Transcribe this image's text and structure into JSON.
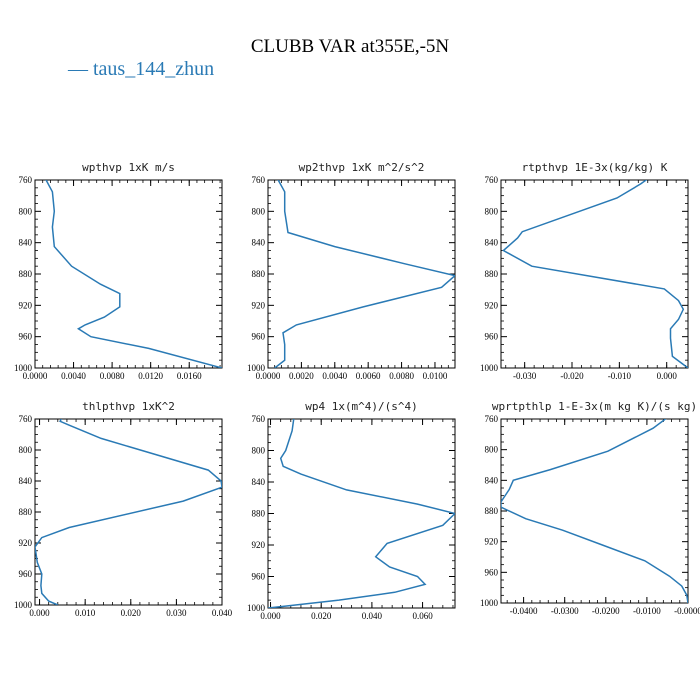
{
  "title": "CLUBB VAR at355E,-5N",
  "legend": {
    "label": "taus_144_zhun",
    "color": "#2a7ab5"
  },
  "chart_data": [
    {
      "type": "line",
      "title": "wpthvp  1xK m/s",
      "xlim": [
        0.0,
        0.0194
      ],
      "ylim": [
        760,
        1000
      ],
      "xticks": [
        "0.0000",
        "0.0040",
        "0.0080",
        "0.0120",
        "0.0160"
      ],
      "xtick_values": [
        0.0,
        0.004,
        0.008,
        0.012,
        0.016
      ],
      "yticks": [
        "760",
        "800",
        "840",
        "880",
        "920",
        "960",
        "1000"
      ],
      "series": [
        {
          "x": [
            0.0008,
            0.0018,
            0.002,
            0.0018,
            0.002,
            0.0038,
            0.0068,
            0.0088,
            0.0088,
            0.0072,
            0.0052,
            0.0045,
            0.0058,
            0.0118,
            0.0194
          ],
          "y": [
            752,
            775,
            800,
            820,
            845,
            870,
            893,
            905,
            922,
            935,
            945,
            950,
            960,
            975,
            1000
          ]
        }
      ]
    },
    {
      "type": "line",
      "title": "wp2thvp  1xK m^2/s^2",
      "xlim": [
        0.0,
        0.0112
      ],
      "ylim": [
        760,
        1000
      ],
      "xticks": [
        "0.0000",
        "0.0020",
        "0.0040",
        "0.0060",
        "0.0080",
        "0.0100"
      ],
      "xtick_values": [
        0.0,
        0.002,
        0.004,
        0.006,
        0.008,
        0.01
      ],
      "yticks": [
        "760",
        "800",
        "840",
        "880",
        "920",
        "960",
        "1000"
      ],
      "series": [
        {
          "x": [
            0.0004,
            0.001,
            0.001,
            0.0012,
            0.004,
            0.0082,
            0.0112,
            0.0104,
            0.0057,
            0.0017,
            0.0009,
            0.001,
            0.001,
            0.0004
          ],
          "y": [
            752,
            775,
            800,
            827,
            845,
            867,
            882,
            897,
            922,
            945,
            955,
            970,
            990,
            1000
          ]
        }
      ]
    },
    {
      "type": "line",
      "title": "rtpthvp  1E-3x(kg/kg) K",
      "xlim": [
        -0.035,
        0.0045
      ],
      "ylim": [
        760,
        1000
      ],
      "xticks": [
        "-0.030",
        "-0.020",
        "-0.010",
        "0.000"
      ],
      "xtick_values": [
        -0.03,
        -0.02,
        -0.01,
        0.0
      ],
      "yticks": [
        "760",
        "800",
        "840",
        "880",
        "920",
        "960",
        "1000"
      ],
      "series": [
        {
          "x": [
            -0.0025,
            -0.0055,
            -0.0105,
            -0.0305,
            -0.0315,
            -0.0345,
            -0.0285,
            -0.0005,
            0.0025,
            0.0035,
            0.0025,
            0.0008,
            0.0008,
            0.0012,
            0.0045
          ],
          "y": [
            752,
            765,
            783,
            826,
            834,
            850,
            870,
            899,
            914,
            925,
            938,
            950,
            962,
            985,
            1000
          ]
        }
      ]
    },
    {
      "type": "line",
      "title": "thlpthvp  1xK^2",
      "xlim": [
        -0.001,
        0.04
      ],
      "ylim": [
        760,
        1000
      ],
      "xticks": [
        "0.000",
        "0.010",
        "0.020",
        "0.030",
        "0.040"
      ],
      "xtick_values": [
        0.0,
        0.01,
        0.02,
        0.03,
        0.04
      ],
      "yticks": [
        "760",
        "800",
        "840",
        "880",
        "920",
        "960",
        "1000"
      ],
      "series": [
        {
          "x": [
            0.0055,
            0.0045,
            0.0065,
            0.0135,
            0.037,
            0.0398,
            0.04,
            0.0315,
            0.0065,
            0.0005,
            -0.001,
            -0.0005,
            0.0005,
            0.0003,
            0.0005,
            0.002,
            0.004
          ],
          "y": [
            752,
            763,
            768,
            785,
            826,
            840,
            848,
            866,
            900,
            913,
            925,
            945,
            960,
            975,
            985,
            995,
            1000
          ]
        }
      ]
    },
    {
      "type": "line",
      "title": "wp4  1x(m^4)/(s^4)",
      "xlim": [
        -0.001,
        0.0728
      ],
      "ylim": [
        760,
        1000
      ],
      "xticks": [
        "0.000",
        "0.020",
        "0.040",
        "0.060"
      ],
      "xtick_values": [
        0.0,
        0.02,
        0.04,
        0.06
      ],
      "yticks": [
        "760",
        "800",
        "840",
        "880",
        "920",
        "960",
        "1000"
      ],
      "series": [
        {
          "x": [
            0.0095,
            0.0085,
            0.006,
            0.004,
            0.005,
            0.012,
            0.03,
            0.058,
            0.0728,
            0.068,
            0.046,
            0.0415,
            0.047,
            0.058,
            0.061,
            0.049,
            0.027,
            0.005,
            -0.001
          ],
          "y": [
            752,
            775,
            800,
            810,
            820,
            830,
            850,
            868,
            880,
            895,
            918,
            935,
            948,
            960,
            970,
            980,
            990,
            998,
            1000
          ]
        }
      ]
    },
    {
      "type": "line",
      "title": "wprtpthlp  1-E-3x(m kg K)/(s kg)",
      "xlim": [
        -0.0455,
        0.0
      ],
      "ylim": [
        760,
        1000
      ],
      "xticks": [
        "-0.0400",
        "-0.0300",
        "-0.0200",
        "-0.0100",
        "-0.0000"
      ],
      "xtick_values": [
        -0.04,
        -0.03,
        -0.02,
        -0.01,
        0.0
      ],
      "yticks": [
        "760",
        "800",
        "840",
        "880",
        "920",
        "960",
        "1000"
      ],
      "series": [
        {
          "x": [
            -0.0035,
            -0.0085,
            -0.0195,
            -0.0335,
            -0.0425,
            -0.0435,
            -0.0455,
            -0.0455,
            -0.0395,
            -0.0305,
            -0.0205,
            -0.0105,
            -0.0045,
            -0.0015,
            -0.0003,
            0.0
          ],
          "y": [
            752,
            772,
            802,
            826,
            840,
            852,
            868,
            875,
            890,
            905,
            925,
            945,
            965,
            978,
            990,
            1000
          ]
        }
      ]
    }
  ]
}
